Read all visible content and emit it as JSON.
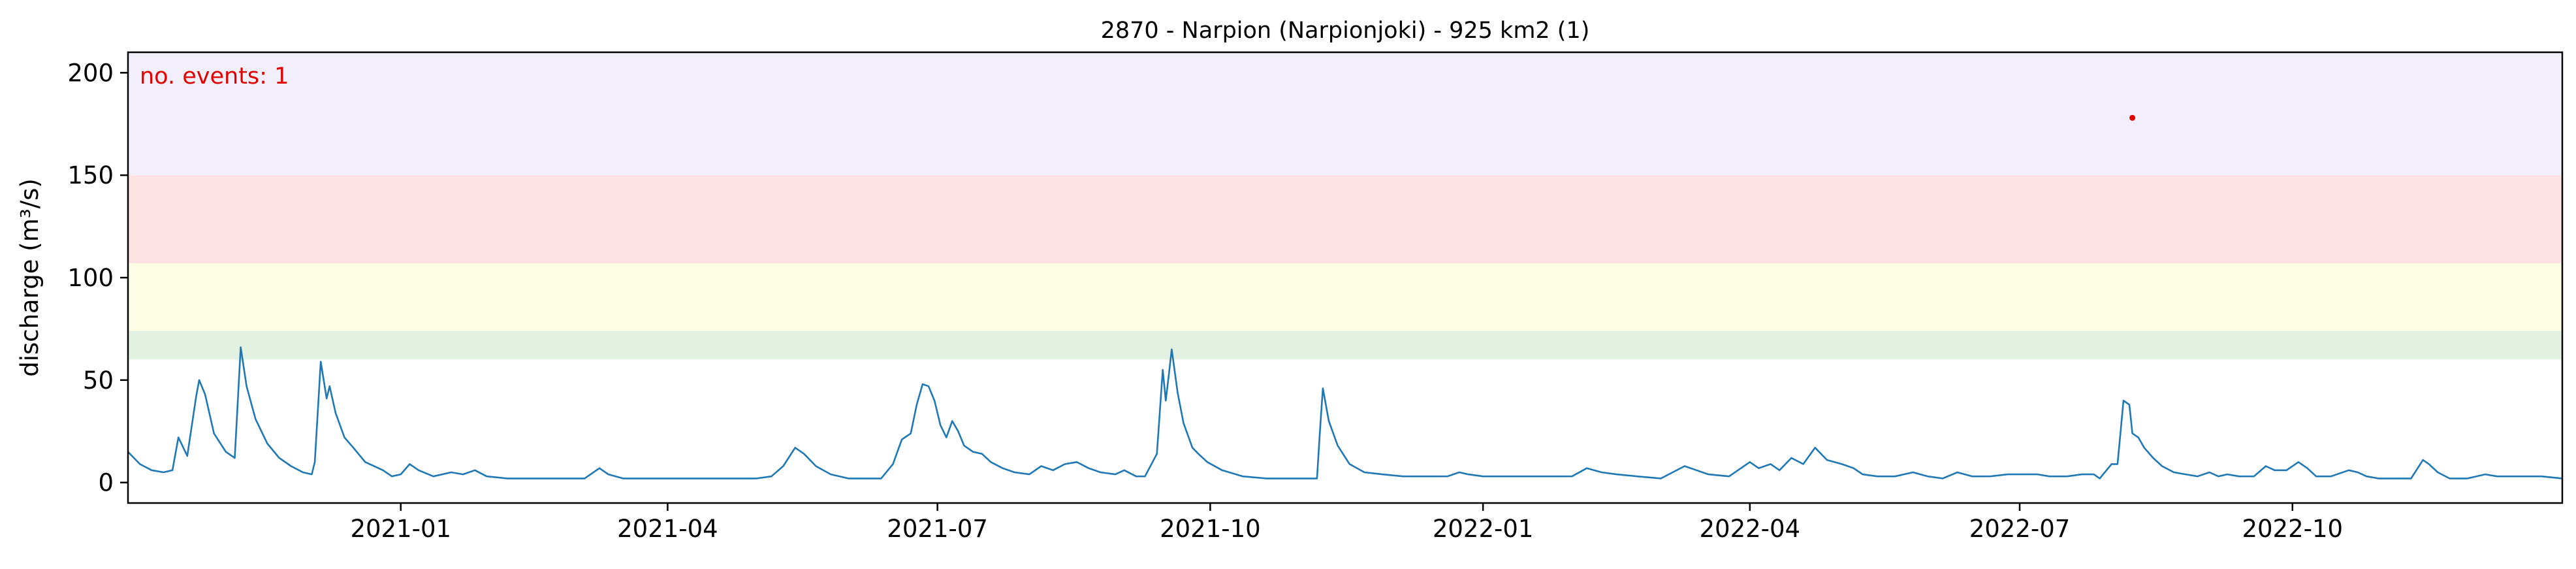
{
  "chart_data": {
    "type": "line",
    "title": "2870 - Narpion (Narpionjoki) - 925 km2 (1)",
    "xlabel": "",
    "ylabel": "discharge (m³/s)",
    "x_range": [
      "2020-10-01",
      "2022-12-31"
    ],
    "ylim": [
      -10,
      210
    ],
    "y_ticks": [
      0,
      50,
      100,
      150,
      200
    ],
    "x_tick_dates": [
      "2021-01-01",
      "2021-04-01",
      "2021-07-01",
      "2021-10-01",
      "2022-01-01",
      "2022-04-01",
      "2022-07-01",
      "2022-10-01"
    ],
    "x_tick_labels": [
      "2021-01",
      "2021-04",
      "2021-07",
      "2021-10",
      "2022-01",
      "2022-04",
      "2022-07",
      "2022-10"
    ],
    "grid": false,
    "annotation": "no. events: 1",
    "threshold_bands": [
      {
        "from": 60,
        "to": 74,
        "color": "#e3f1e3"
      },
      {
        "from": 74,
        "to": 107,
        "color": "#fdfde3"
      },
      {
        "from": 107,
        "to": 150,
        "color": "#fde2e4"
      },
      {
        "from": 150,
        "to": 210,
        "color": "#f2effa"
      }
    ],
    "series": [
      {
        "color": "#1f77b4",
        "points": [
          [
            "2020-10-01",
            15
          ],
          [
            "2020-10-05",
            9
          ],
          [
            "2020-10-09",
            6
          ],
          [
            "2020-10-13",
            5
          ],
          [
            "2020-10-16",
            6
          ],
          [
            "2020-10-18",
            22
          ],
          [
            "2020-10-21",
            13
          ],
          [
            "2020-10-24",
            42
          ],
          [
            "2020-10-25",
            50
          ],
          [
            "2020-10-27",
            43
          ],
          [
            "2020-10-30",
            24
          ],
          [
            "2020-11-03",
            15
          ],
          [
            "2020-11-06",
            12
          ],
          [
            "2020-11-08",
            66
          ],
          [
            "2020-11-10",
            47
          ],
          [
            "2020-11-13",
            31
          ],
          [
            "2020-11-17",
            19
          ],
          [
            "2020-11-21",
            12
          ],
          [
            "2020-11-25",
            8
          ],
          [
            "2020-11-29",
            5
          ],
          [
            "2020-12-02",
            4
          ],
          [
            "2020-12-03",
            10
          ],
          [
            "2020-12-05",
            59
          ],
          [
            "2020-12-07",
            41
          ],
          [
            "2020-12-08",
            47
          ],
          [
            "2020-12-10",
            34
          ],
          [
            "2020-12-13",
            22
          ],
          [
            "2020-12-16",
            17
          ],
          [
            "2020-12-20",
            10
          ],
          [
            "2020-12-26",
            6
          ],
          [
            "2020-12-29",
            3
          ],
          [
            "2021-01-01",
            4
          ],
          [
            "2021-01-04",
            9
          ],
          [
            "2021-01-07",
            6
          ],
          [
            "2021-01-12",
            3
          ],
          [
            "2021-01-18",
            5
          ],
          [
            "2021-01-22",
            4
          ],
          [
            "2021-01-26",
            6
          ],
          [
            "2021-01-30",
            3
          ],
          [
            "2021-02-06",
            2
          ],
          [
            "2021-02-15",
            2
          ],
          [
            "2021-02-25",
            2
          ],
          [
            "2021-03-04",
            2
          ],
          [
            "2021-03-09",
            7
          ],
          [
            "2021-03-12",
            4
          ],
          [
            "2021-03-17",
            2
          ],
          [
            "2021-03-25",
            2
          ],
          [
            "2021-04-05",
            2
          ],
          [
            "2021-04-20",
            2
          ],
          [
            "2021-05-01",
            2
          ],
          [
            "2021-05-06",
            3
          ],
          [
            "2021-05-10",
            8
          ],
          [
            "2021-05-14",
            17
          ],
          [
            "2021-05-17",
            14
          ],
          [
            "2021-05-21",
            8
          ],
          [
            "2021-05-26",
            4
          ],
          [
            "2021-06-01",
            2
          ],
          [
            "2021-06-07",
            2
          ],
          [
            "2021-06-12",
            2
          ],
          [
            "2021-06-16",
            9
          ],
          [
            "2021-06-19",
            21
          ],
          [
            "2021-06-22",
            24
          ],
          [
            "2021-06-24",
            38
          ],
          [
            "2021-06-26",
            48
          ],
          [
            "2021-06-28",
            47
          ],
          [
            "2021-06-30",
            40
          ],
          [
            "2021-07-02",
            28
          ],
          [
            "2021-07-04",
            22
          ],
          [
            "2021-07-06",
            30
          ],
          [
            "2021-07-08",
            25
          ],
          [
            "2021-07-10",
            18
          ],
          [
            "2021-07-13",
            15
          ],
          [
            "2021-07-16",
            14
          ],
          [
            "2021-07-19",
            10
          ],
          [
            "2021-07-23",
            7
          ],
          [
            "2021-07-27",
            5
          ],
          [
            "2021-08-01",
            4
          ],
          [
            "2021-08-05",
            8
          ],
          [
            "2021-08-09",
            6
          ],
          [
            "2021-08-13",
            9
          ],
          [
            "2021-08-17",
            10
          ],
          [
            "2021-08-21",
            7
          ],
          [
            "2021-08-25",
            5
          ],
          [
            "2021-08-30",
            4
          ],
          [
            "2021-09-02",
            6
          ],
          [
            "2021-09-06",
            3
          ],
          [
            "2021-09-09",
            3
          ],
          [
            "2021-09-13",
            14
          ],
          [
            "2021-09-15",
            55
          ],
          [
            "2021-09-16",
            40
          ],
          [
            "2021-09-17",
            52
          ],
          [
            "2021-09-18",
            65
          ],
          [
            "2021-09-20",
            44
          ],
          [
            "2021-09-22",
            29
          ],
          [
            "2021-09-25",
            17
          ],
          [
            "2021-09-27",
            14
          ],
          [
            "2021-09-30",
            10
          ],
          [
            "2021-10-05",
            6
          ],
          [
            "2021-10-12",
            3
          ],
          [
            "2021-10-20",
            2
          ],
          [
            "2021-11-01",
            2
          ],
          [
            "2021-11-06",
            2
          ],
          [
            "2021-11-07",
            25
          ],
          [
            "2021-11-08",
            46
          ],
          [
            "2021-11-10",
            30
          ],
          [
            "2021-11-13",
            18
          ],
          [
            "2021-11-17",
            9
          ],
          [
            "2021-11-22",
            5
          ],
          [
            "2021-11-28",
            4
          ],
          [
            "2021-12-05",
            3
          ],
          [
            "2021-12-15",
            3
          ],
          [
            "2021-12-20",
            3
          ],
          [
            "2021-12-24",
            5
          ],
          [
            "2021-12-27",
            4
          ],
          [
            "2022-01-01",
            3
          ],
          [
            "2022-01-10",
            3
          ],
          [
            "2022-01-20",
            3
          ],
          [
            "2022-01-31",
            3
          ],
          [
            "2022-02-05",
            7
          ],
          [
            "2022-02-10",
            5
          ],
          [
            "2022-02-15",
            4
          ],
          [
            "2022-02-22",
            3
          ],
          [
            "2022-03-02",
            2
          ],
          [
            "2022-03-10",
            8
          ],
          [
            "2022-03-14",
            6
          ],
          [
            "2022-03-18",
            4
          ],
          [
            "2022-03-25",
            3
          ],
          [
            "2022-04-01",
            10
          ],
          [
            "2022-04-04",
            7
          ],
          [
            "2022-04-08",
            9
          ],
          [
            "2022-04-11",
            6
          ],
          [
            "2022-04-15",
            12
          ],
          [
            "2022-04-19",
            9
          ],
          [
            "2022-04-23",
            17
          ],
          [
            "2022-04-27",
            11
          ],
          [
            "2022-05-02",
            9
          ],
          [
            "2022-05-06",
            7
          ],
          [
            "2022-05-09",
            4
          ],
          [
            "2022-05-14",
            3
          ],
          [
            "2022-05-20",
            3
          ],
          [
            "2022-05-26",
            5
          ],
          [
            "2022-05-31",
            3
          ],
          [
            "2022-06-05",
            2
          ],
          [
            "2022-06-10",
            5
          ],
          [
            "2022-06-15",
            3
          ],
          [
            "2022-06-21",
            3
          ],
          [
            "2022-06-27",
            4
          ],
          [
            "2022-07-03",
            4
          ],
          [
            "2022-07-07",
            4
          ],
          [
            "2022-07-11",
            3
          ],
          [
            "2022-07-17",
            3
          ],
          [
            "2022-07-22",
            4
          ],
          [
            "2022-07-26",
            4
          ],
          [
            "2022-07-28",
            2
          ],
          [
            "2022-08-01",
            9
          ],
          [
            "2022-08-03",
            9
          ],
          [
            "2022-08-05",
            40
          ],
          [
            "2022-08-07",
            38
          ],
          [
            "2022-08-08",
            24
          ],
          [
            "2022-08-10",
            22
          ],
          [
            "2022-08-12",
            17
          ],
          [
            "2022-08-15",
            12
          ],
          [
            "2022-08-18",
            8
          ],
          [
            "2022-08-22",
            5
          ],
          [
            "2022-08-26",
            4
          ],
          [
            "2022-08-30",
            3
          ],
          [
            "2022-09-03",
            5
          ],
          [
            "2022-09-06",
            3
          ],
          [
            "2022-09-09",
            4
          ],
          [
            "2022-09-13",
            3
          ],
          [
            "2022-09-18",
            3
          ],
          [
            "2022-09-22",
            8
          ],
          [
            "2022-09-25",
            6
          ],
          [
            "2022-09-29",
            6
          ],
          [
            "2022-10-03",
            10
          ],
          [
            "2022-10-06",
            7
          ],
          [
            "2022-10-09",
            3
          ],
          [
            "2022-10-14",
            3
          ],
          [
            "2022-10-20",
            6
          ],
          [
            "2022-10-23",
            5
          ],
          [
            "2022-10-26",
            3
          ],
          [
            "2022-10-30",
            2
          ],
          [
            "2022-11-05",
            2
          ],
          [
            "2022-11-10",
            2
          ],
          [
            "2022-11-14",
            11
          ],
          [
            "2022-11-16",
            9
          ],
          [
            "2022-11-19",
            5
          ],
          [
            "2022-11-23",
            2
          ],
          [
            "2022-11-29",
            2
          ],
          [
            "2022-12-05",
            4
          ],
          [
            "2022-12-09",
            3
          ],
          [
            "2022-12-14",
            3
          ],
          [
            "2022-12-19",
            3
          ],
          [
            "2022-12-24",
            3
          ],
          [
            "2022-12-31",
            2
          ]
        ]
      }
    ],
    "events": [
      {
        "x": "2022-08-08",
        "y": 178
      }
    ]
  }
}
